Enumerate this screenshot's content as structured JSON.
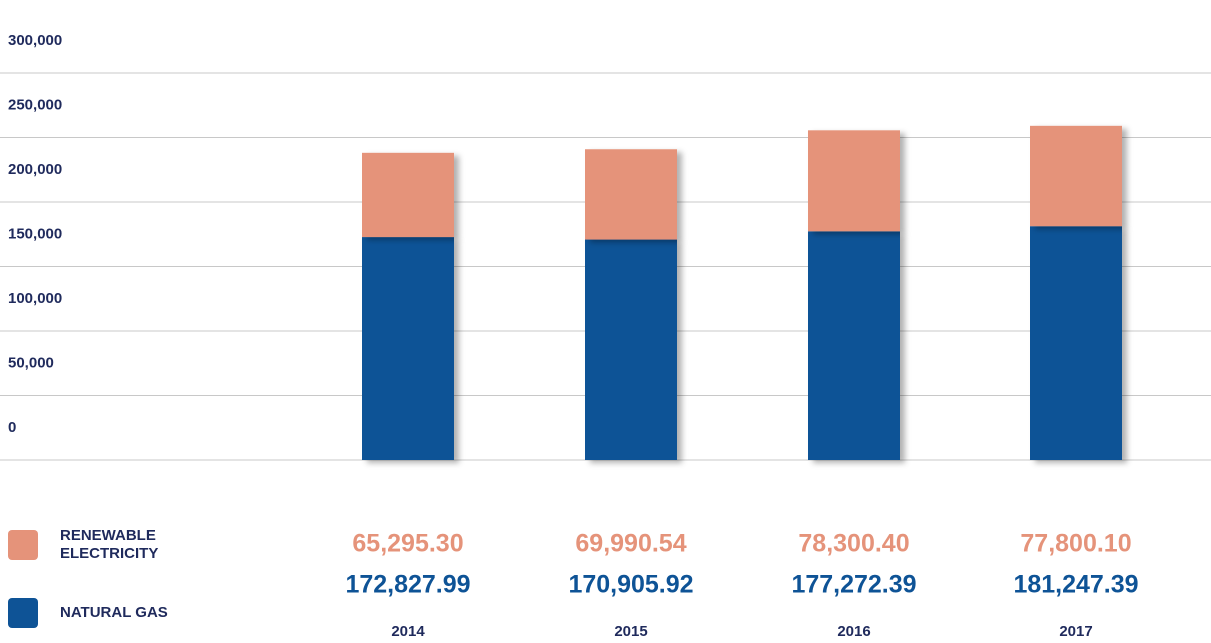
{
  "chart_data": {
    "type": "bar",
    "stacked": true,
    "categories": [
      "2014",
      "2015",
      "2016",
      "2017"
    ],
    "series": [
      {
        "name": "NATURAL GAS",
        "color": "#0e5396",
        "values": [
          172827.99,
          170905.92,
          177272.39,
          181247.39
        ],
        "value_labels": [
          "172,827.99",
          "170,905.92",
          "177,272.39",
          "181,247.39"
        ]
      },
      {
        "name": "RENEWABLE ELECTRICITY",
        "color": "#e5937a",
        "values": [
          65295.3,
          69990.54,
          78300.4,
          77800.1
        ],
        "value_labels": [
          "65,295.30",
          "69,990.54",
          "78,300.40",
          "77,800.10"
        ]
      }
    ],
    "ylim": [
      0,
      300000
    ],
    "yticks": [
      0,
      {
        "value": 50000,
        "label": "50,000"
      },
      {
        "value": 100000,
        "label": "100,000"
      },
      {
        "value": 150000,
        "label": "150,000"
      },
      {
        "value": 200000,
        "label": "200,000"
      },
      {
        "value": 250000,
        "label": "250,000"
      },
      {
        "value": 300000,
        "label": "300,000"
      }
    ],
    "grid": true
  }
}
